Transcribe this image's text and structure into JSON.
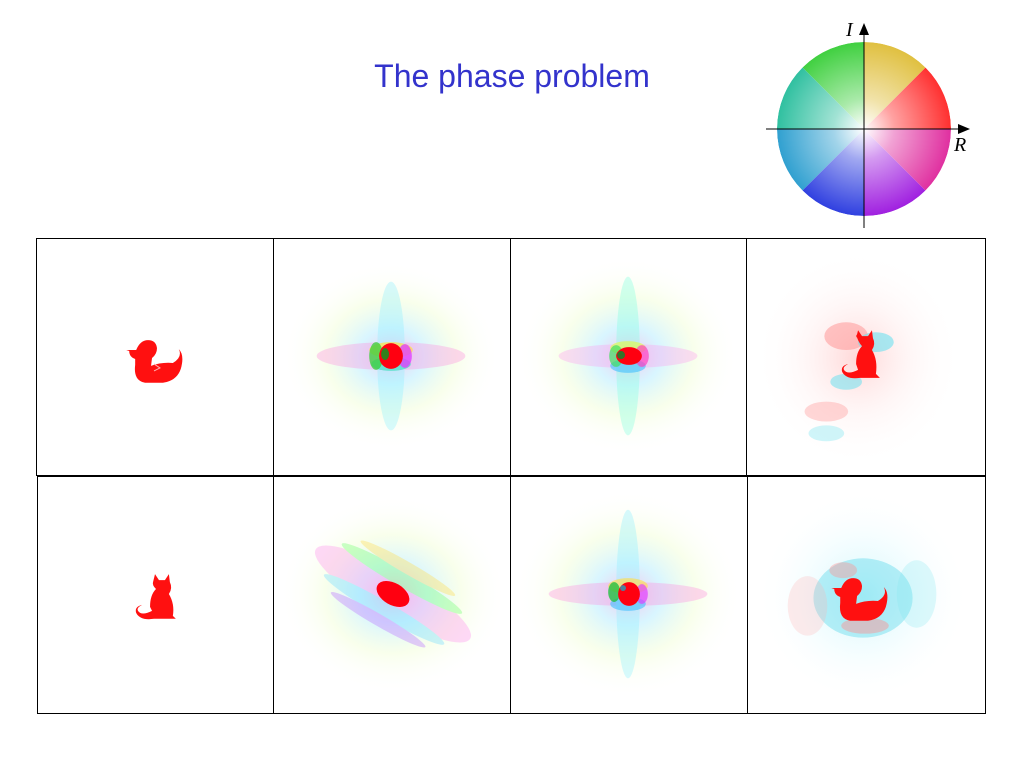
{
  "slide": {
    "title": "The phase problem"
  },
  "color_wheel": {
    "real_axis_label": "R",
    "imaginary_axis_label": "I"
  },
  "grid": {
    "rows": [
      {
        "object": "duck",
        "result": "cat"
      },
      {
        "object": "cat",
        "result": "duck"
      }
    ]
  },
  "colors": {
    "title": "#3333cc",
    "object": "#ff1010"
  }
}
